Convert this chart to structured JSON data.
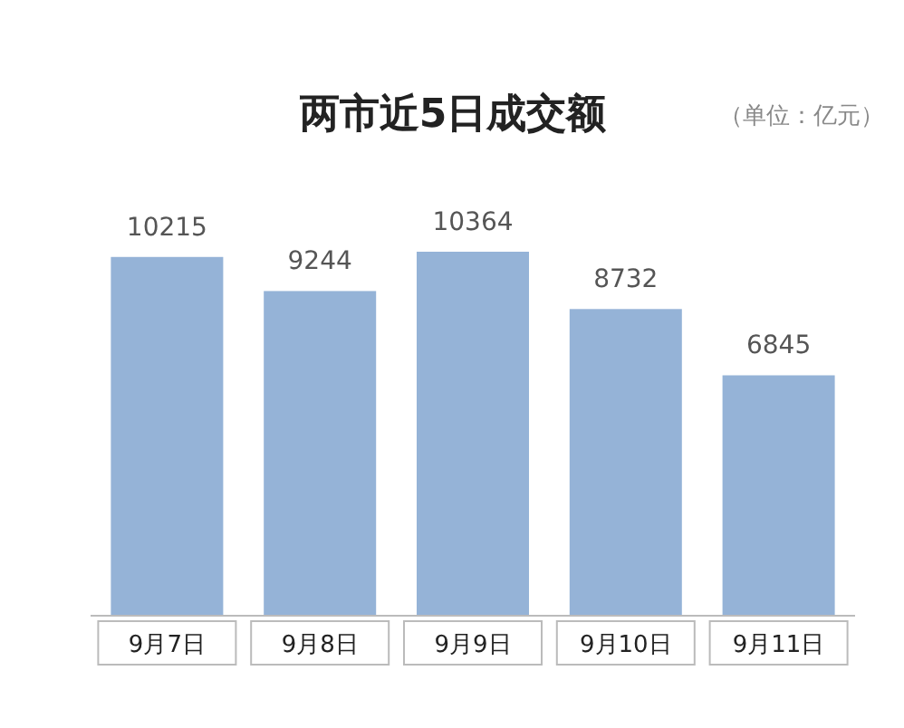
{
  "chart_data": {
    "type": "bar",
    "title": "两市近5日成交额",
    "annotations": [
      "（单位：亿元）"
    ],
    "categories": [
      "9月7日",
      "9月8日",
      "9月9日",
      "9月10日",
      "9月11日"
    ],
    "values": [
      10215,
      9244,
      10364,
      8732,
      6845
    ],
    "color": "#95b3d7",
    "data_labels": true
  }
}
